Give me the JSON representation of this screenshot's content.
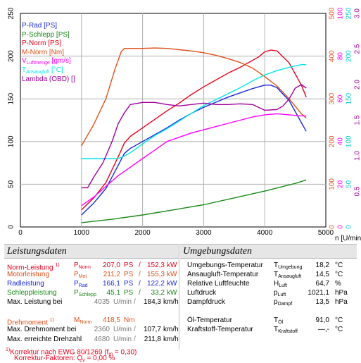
{
  "chart_data": {
    "type": "line",
    "xlabel": "n [U/min]",
    "x_ticks": [
      0,
      1000,
      2000,
      3000,
      4000,
      5000
    ],
    "xlim": [
      0,
      5000
    ],
    "axes": {
      "left": {
        "ticks": [
          0,
          50,
          100,
          150,
          200,
          250
        ],
        "range": [
          0,
          250
        ],
        "color": "#000000"
      },
      "r1": {
        "ticks": [
          0,
          100,
          200,
          300,
          400,
          500
        ],
        "range": [
          0,
          500
        ],
        "color": "#e0501a"
      },
      "r2": {
        "ticks": [
          0,
          20,
          40,
          60,
          80,
          100
        ],
        "range": [
          0,
          100
        ],
        "color": "#ff00ff"
      },
      "r3": {
        "ticks": [
          0,
          50,
          100,
          150,
          200,
          250
        ],
        "range": [
          0,
          250
        ],
        "color": "#00c8c8"
      },
      "r4": {
        "ticks": [
          0.5,
          1.0,
          1.5,
          2.0,
          2.5,
          3.0
        ],
        "range": [
          0,
          3.0
        ],
        "color": "#a000a0"
      }
    },
    "series": [
      {
        "name": "P-Rad [PS]",
        "color": "#1a2ad8",
        "axis": "left",
        "x": [
          1000,
          1200,
          1400,
          1600,
          1700,
          1800,
          2000,
          2200,
          2400,
          2600,
          2800,
          3000,
          3200,
          3400,
          3600,
          3800,
          4000,
          4100,
          4200,
          4400,
          4600,
          4680
        ],
        "y": [
          14,
          28,
          45,
          72,
          86,
          92,
          100,
          108,
          116,
          125,
          133,
          140,
          146,
          152,
          157,
          162,
          166,
          166,
          163,
          148,
          122,
          112
        ]
      },
      {
        "name": "P-Schlepp [PS]",
        "color": "#1a8a1a",
        "axis": "left",
        "x": [
          1000,
          1500,
          2000,
          2500,
          3000,
          3500,
          4000,
          4500,
          4680
        ],
        "y": [
          5,
          9,
          14,
          20,
          26,
          34,
          42,
          51,
          55
        ]
      },
      {
        "name": "P-Norm [PS]",
        "color": "#e8001c",
        "axis": "left",
        "x": [
          1000,
          1200,
          1400,
          1600,
          1700,
          1800,
          2000,
          2200,
          2400,
          2600,
          2800,
          3000,
          3200,
          3400,
          3600,
          3800,
          3900,
          4000,
          4100,
          4200,
          4400,
          4600,
          4680
        ],
        "y": [
          20,
          34,
          52,
          82,
          98,
          106,
          116,
          126,
          136,
          145,
          155,
          164,
          172,
          180,
          187,
          195,
          199,
          205,
          207,
          206,
          192,
          166,
          152
        ]
      },
      {
        "name": "M-Norm [Nm]",
        "color": "#e0501a",
        "axis": "r1",
        "x": [
          1000,
          1200,
          1400,
          1550,
          1650,
          1700,
          1800,
          2000,
          2200,
          2400,
          2600,
          2800,
          3000,
          3200,
          3400,
          3600,
          3800,
          4000,
          4200,
          4400,
          4600,
          4680
        ],
        "y": [
          190,
          240,
          300,
          370,
          410,
          418,
          418,
          418,
          419,
          418,
          415,
          412,
          408,
          402,
          394,
          385,
          372,
          352,
          330,
          300,
          265,
          255
        ]
      },
      {
        "name": "V",
        "label_sub": "Luftmenge",
        "unit": "[gm/s]",
        "color": "#ff00ff",
        "axis": "r2",
        "x": [
          1000,
          1200,
          1400,
          1600,
          1800,
          2000,
          2200,
          2400,
          2600,
          2800,
          3000,
          3200,
          3400,
          3600,
          3800,
          4000,
          4200,
          4400,
          4600,
          4680
        ],
        "y": [
          10,
          14,
          19,
          24,
          28,
          32,
          36,
          40,
          42,
          44,
          45.5,
          47,
          48.5,
          50,
          51.5,
          52.5,
          53,
          52.5,
          52,
          52
        ]
      },
      {
        "name": "T",
        "label_sub": "Ansaugluft",
        "unit": "[°C]",
        "color": "#00e8e8",
        "axis": "r3",
        "x": [
          1000,
          1600,
          1700,
          1800,
          2000,
          2200,
          2400,
          2600,
          2800,
          3000,
          3200,
          3400,
          3600,
          3800,
          4000,
          4200,
          4400,
          4600,
          4680
        ],
        "y": [
          80,
          80,
          83,
          87,
          97,
          107,
          115,
          124,
          133,
          142,
          149,
          156,
          163,
          171,
          178,
          183,
          187,
          190,
          190
        ]
      },
      {
        "name": "Lambda (OBD) []",
        "color": "#a000a0",
        "axis": "r4",
        "x": [
          1000,
          1100,
          1200,
          1350,
          1450,
          1500,
          1600,
          1700,
          1800,
          2000,
          2200,
          2400,
          2600,
          2800,
          3000,
          3200,
          3400,
          3600,
          3800,
          4000,
          4200,
          4300,
          4400,
          4500,
          4600,
          4680
        ],
        "y": [
          0.55,
          0.55,
          0.7,
          0.9,
          1.1,
          1.2,
          1.45,
          1.6,
          1.72,
          1.75,
          1.75,
          1.72,
          1.7,
          1.72,
          1.74,
          1.72,
          1.72,
          1.73,
          1.72,
          1.64,
          1.65,
          1.7,
          1.8,
          1.95,
          2.0,
          1.95
        ]
      }
    ]
  },
  "legend": [
    {
      "text": "P-Rad [PS]",
      "color": "#1a2ad8"
    },
    {
      "text": "P-Schlepp [PS]",
      "color": "#1a8a1a"
    },
    {
      "text": "P-Norm [PS]",
      "color": "#e8001c"
    },
    {
      "text": "M-Norm [Nm]",
      "color": "#e0501a"
    },
    {
      "text": "V",
      "sub": "Luftmenge",
      "tail": " [gm/s]",
      "color": "#ff00ff"
    },
    {
      "text": "T",
      "sub": "Ansaugluft",
      "tail": " [°C]",
      "color": "#00e8e8"
    },
    {
      "text": "Lambda (OBD) []",
      "color": "#a000a0"
    }
  ],
  "left_panel": {
    "title": "Leistungsdaten",
    "norm_label": "Norm-Leistung",
    "norm_foot": "1)",
    "norm_sym": "P",
    "norm_sub": "Norm",
    "norm_ps": "207,0",
    "norm_kw": "152,3",
    "motor_label": "Motorleistung",
    "motor_sym": "P",
    "motor_sub": "Mot",
    "motor_ps": "211,2",
    "motor_kw": "155,3",
    "rad_label": "Radleistung",
    "rad_sym": "P",
    "rad_sub": "Rad",
    "rad_ps": "166,1",
    "rad_kw": "122,2",
    "schlepp_label": "Schleppleistung",
    "schlepp_sym": "P",
    "schlepp_sub": "Schlepp",
    "schlepp_ps": "45,1",
    "schlepp_kw": "33,2",
    "unit_ps": "PS",
    "unit_slash": "/",
    "unit_kw": "kW",
    "maxl_label": "Max. Leistung bei",
    "maxl_rpm": "4035",
    "maxl_unit": "U/min",
    "maxl_speed": "184,3",
    "maxl_speed_unit": "km/h",
    "dm_label": "Drehmoment",
    "dm_foot": "1)",
    "dm_sym": "M",
    "dm_sub": "Norm",
    "dm_val": "418,5",
    "dm_unit": "Nm",
    "maxd_label": "Max. Drehmoment bei",
    "maxd_rpm": "2360",
    "maxd_unit": "U/min",
    "maxd_speed": "107,7",
    "maxd_speed_unit": "km/h",
    "maxn_label": "Max. erreichte Drehzahl",
    "maxn_rpm": "4680",
    "maxn_unit": "U/min",
    "maxn_speed": "211,8",
    "maxn_speed_unit": "km/h",
    "foot1_a": "1)",
    "foot1_b": "Korrektur nach EWG 80/1269  (f",
    "foot1_sub": "m",
    "foot1_c": " =  0,30)",
    "foot2_a": "Korrektur-Faktoren: Q",
    "foot2_sub": "v",
    "foot2_c": " =   0,00 %"
  },
  "right_panel": {
    "title": "Umgebungsdaten",
    "rows": [
      {
        "label": "Umgebungs-Temperatur",
        "sym": "T",
        "sub": "Umgebung",
        "val": "18,2",
        "unit": "°C"
      },
      {
        "label": "Ansaugluft-Temperatur",
        "sym": "T",
        "sub": "Ansaugluft",
        "val": "14,5",
        "unit": "°C"
      },
      {
        "label": "Relative Luftfeuchte",
        "sym": "H",
        "sub": "Luft",
        "val": "64,7",
        "unit": "%"
      },
      {
        "label": "Luftdruck",
        "sym": "p",
        "sub": "Luft",
        "val": "1021,1",
        "unit": "hPa"
      },
      {
        "label": "Dampfdruck",
        "sym": "p",
        "sub": "Dampf",
        "val": "13,5",
        "unit": "hPa"
      },
      {
        "label": "Öl-Temperatur",
        "sym": "T",
        "sub": "Öl",
        "val": "91,0",
        "unit": "°C"
      },
      {
        "label": "Kraftstoff-Temperatur",
        "sym": "T",
        "sub": "Kraftstoff",
        "val": "—,-",
        "unit": "°C"
      }
    ]
  }
}
